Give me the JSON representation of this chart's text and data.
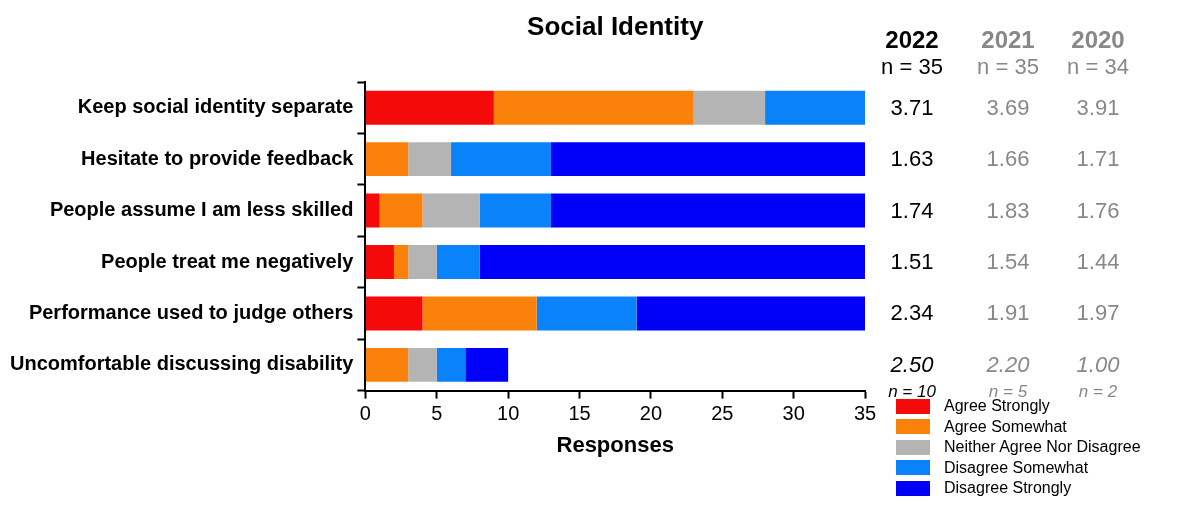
{
  "chart_data": {
    "type": "bar",
    "orientation": "horizontal",
    "stacked": true,
    "title": "Social Identity",
    "xlabel": "Responses",
    "categories": [
      "Keep social identity separate",
      "Hesitate to provide feedback",
      "People assume I am less skilled",
      "People treat me negatively",
      "Performance used to judge others",
      "Uncomfortable discussing disability"
    ],
    "series": [
      {
        "name": "Agree Strongly",
        "color": "#f50a0a",
        "values": [
          9,
          0,
          1,
          2,
          4,
          0
        ]
      },
      {
        "name": "Agree Somewhat",
        "color": "#fa820a",
        "values": [
          14,
          3,
          3,
          1,
          8,
          3
        ]
      },
      {
        "name": "Neither Agree Nor Disagree",
        "color": "#b4b4b4",
        "values": [
          5,
          3,
          4,
          2,
          0,
          2
        ]
      },
      {
        "name": "Disagree Somewhat",
        "color": "#0a82fa",
        "values": [
          7,
          7,
          5,
          3,
          7,
          2
        ]
      },
      {
        "name": "Disagree Strongly",
        "color": "#0000fa",
        "values": [
          0,
          22,
          22,
          27,
          16,
          3
        ]
      }
    ],
    "xlim": [
      0,
      35
    ],
    "xticks": [
      0,
      5,
      10,
      15,
      20,
      25,
      30,
      35
    ],
    "grid": false,
    "legend": "bottom right",
    "annotations": [
      "2022",
      "2021",
      "2020",
      "n = 35",
      "n = 35",
      "n = 34",
      "3.71",
      "3.69",
      "3.91",
      "1.63",
      "1.66",
      "1.71",
      "1.74",
      "1.83",
      "1.76",
      "1.51",
      "1.54",
      "1.44",
      "2.34",
      "1.91",
      "1.97",
      "2.50",
      "2.20",
      "1.00",
      "n = 10",
      "n = 5",
      "n = 2"
    ]
  }
}
